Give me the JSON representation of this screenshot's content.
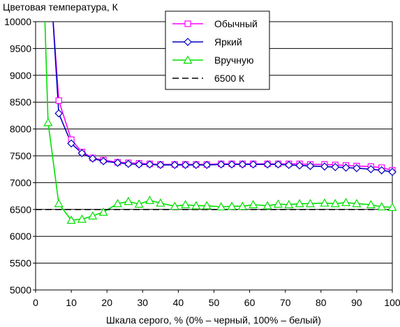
{
  "chart_data": {
    "type": "line",
    "title": "",
    "ylabel": "Цветовая температура, К",
    "xlabel": "Шкала серого, % (0% – черный, 100% – белый)",
    "xlim": [
      0,
      100
    ],
    "ylim": [
      5000,
      10000
    ],
    "x_ticks": [
      0,
      10,
      20,
      30,
      40,
      50,
      60,
      70,
      80,
      90,
      100
    ],
    "y_ticks": [
      5000,
      5500,
      6000,
      6500,
      7000,
      7500,
      8000,
      8500,
      9000,
      9500,
      10000
    ],
    "grid": "horizontal",
    "legend_position": "top-right",
    "series": [
      {
        "name": "Обычный",
        "color": "#ff00ff",
        "marker": "square",
        "x": [
          6.5,
          10,
          13,
          16,
          19,
          23,
          26,
          29,
          32,
          35,
          39,
          42,
          45,
          48,
          52,
          55,
          58,
          61,
          65,
          68,
          71,
          74,
          77,
          81,
          84,
          87,
          90,
          94,
          97,
          100
        ],
        "y": [
          8530,
          7800,
          7570,
          7460,
          7420,
          7380,
          7370,
          7360,
          7350,
          7340,
          7340,
          7340,
          7340,
          7340,
          7350,
          7350,
          7350,
          7350,
          7350,
          7350,
          7350,
          7350,
          7340,
          7340,
          7330,
          7320,
          7310,
          7300,
          7280,
          7230
        ]
      },
      {
        "name": "Яркий",
        "color": "#0000c0",
        "marker": "diamond",
        "x": [
          6.5,
          10,
          13,
          16,
          19,
          23,
          26,
          29,
          32,
          35,
          39,
          42,
          45,
          48,
          52,
          55,
          58,
          61,
          65,
          68,
          71,
          74,
          77,
          81,
          84,
          87,
          90,
          94,
          97,
          100
        ],
        "y": [
          8290,
          7730,
          7550,
          7450,
          7400,
          7370,
          7350,
          7340,
          7340,
          7330,
          7330,
          7330,
          7330,
          7330,
          7340,
          7340,
          7340,
          7340,
          7340,
          7340,
          7330,
          7320,
          7310,
          7300,
          7290,
          7280,
          7270,
          7250,
          7230,
          7200
        ]
      },
      {
        "name": "Вручную",
        "color": "#00e000",
        "marker": "triangle",
        "x": [
          3.5,
          6.5,
          10,
          13,
          16,
          19,
          23,
          26,
          29,
          32,
          35,
          39,
          42,
          45,
          48,
          52,
          55,
          58,
          61,
          65,
          68,
          71,
          74,
          77,
          81,
          84,
          87,
          90,
          94,
          97,
          100
        ],
        "y": [
          8120,
          6610,
          6300,
          6320,
          6380,
          6450,
          6610,
          6650,
          6600,
          6670,
          6620,
          6560,
          6590,
          6570,
          6570,
          6550,
          6560,
          6560,
          6590,
          6570,
          6600,
          6590,
          6610,
          6610,
          6620,
          6610,
          6630,
          6610,
          6590,
          6550,
          6540
        ]
      },
      {
        "name": "6500 К",
        "color": "#000000",
        "marker": "none",
        "dashed": true,
        "x": [
          0,
          100
        ],
        "y": [
          6500,
          6500
        ]
      }
    ]
  }
}
